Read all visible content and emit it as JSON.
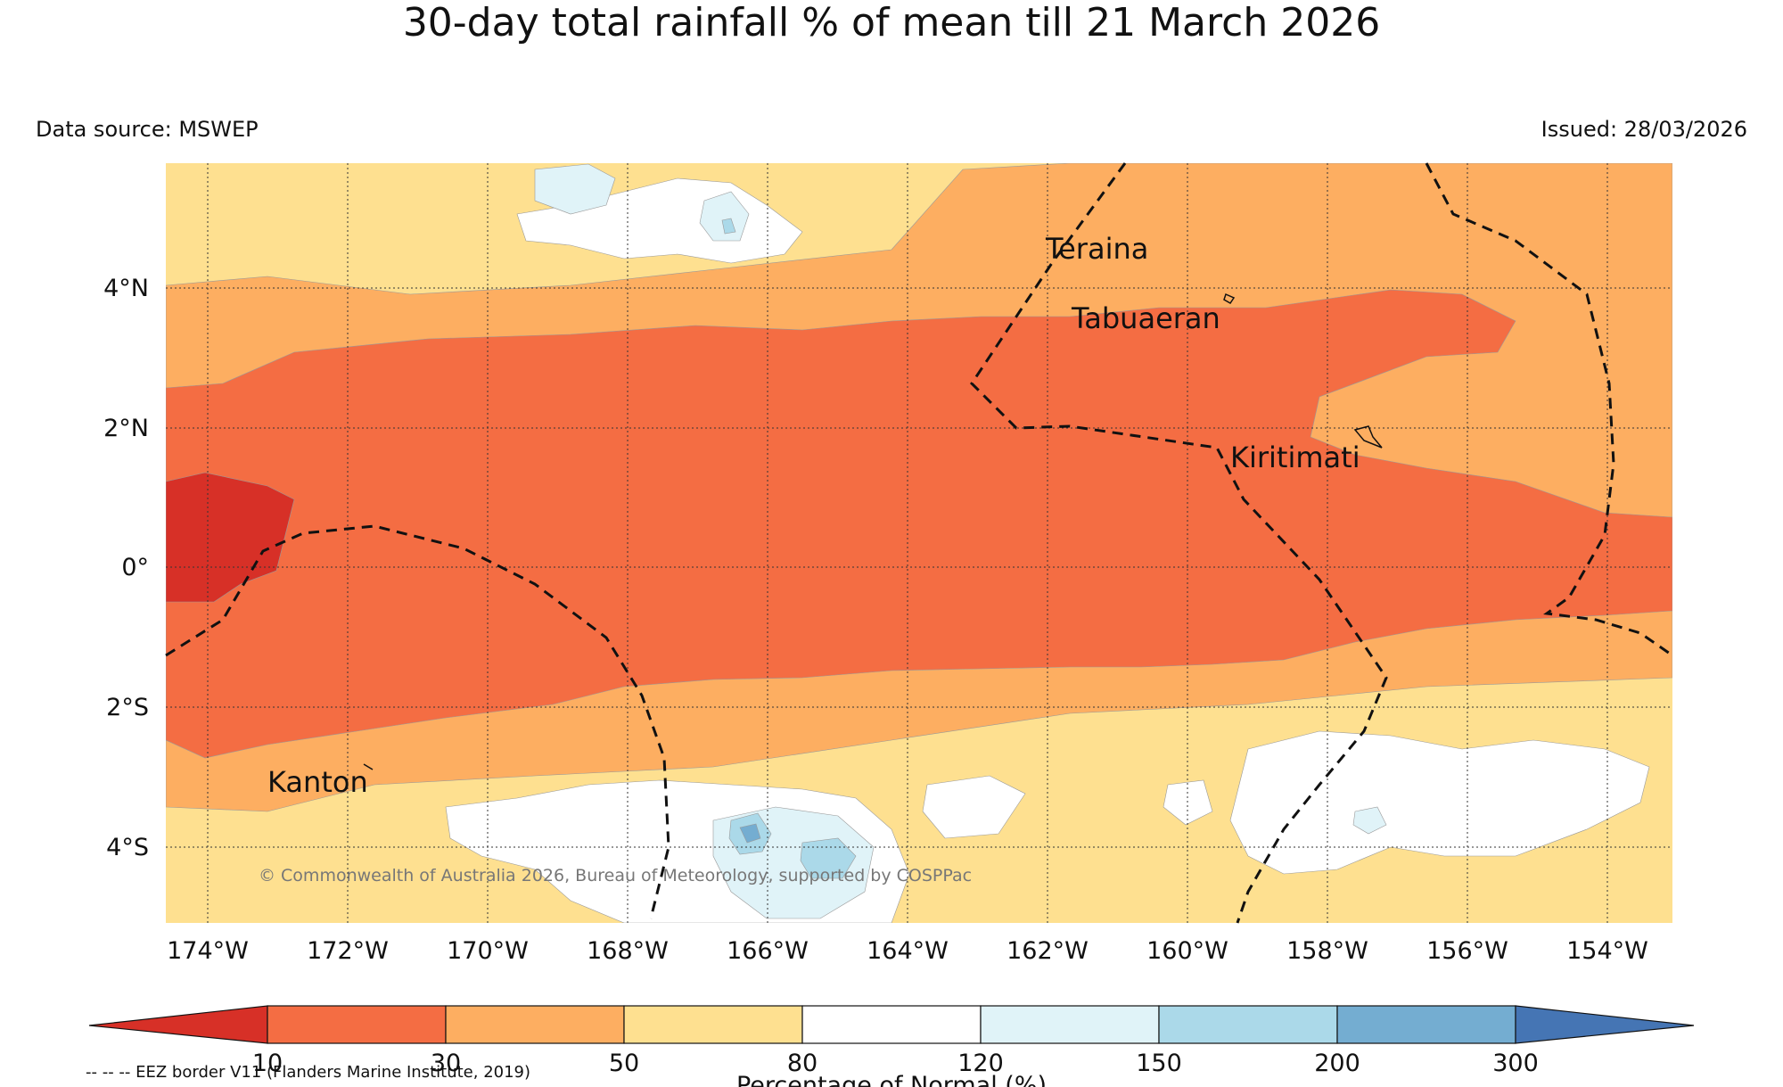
{
  "title": "30-day total rainfall % of mean till 21 March 2026",
  "data_source": "Data source: MSWEP",
  "issued": "Issued: 28/03/2026",
  "copyright": "© Commonwealth of Australia 2026, Bureau of Meteorology, supported by COSPPac",
  "eez_note": "-- -- -- EEZ border V11 (Flanders Marine Institute, 2019)",
  "colorbar": {
    "label": "Percentage of Normal (%)",
    "ticks": [
      "10",
      "30",
      "50",
      "80",
      "120",
      "150",
      "200",
      "300"
    ],
    "colors": [
      "#d73027",
      "#f46d43",
      "#fdae61",
      "#fee090",
      "#ffffff",
      "#e0f3f8",
      "#abd9e9",
      "#74add1",
      "#4575b4"
    ]
  },
  "axes": {
    "lon_labels": [
      "174°W",
      "172°W",
      "170°W",
      "168°W",
      "166°W",
      "164°W",
      "162°W",
      "160°W",
      "158°W",
      "156°W",
      "154°W"
    ],
    "lat_labels": [
      "4°N",
      "2°N",
      "0°",
      "2°S",
      "4°S"
    ]
  },
  "places": [
    "Teraina",
    "Tabuaeran",
    "Kiritimati",
    "Kanton"
  ]
}
